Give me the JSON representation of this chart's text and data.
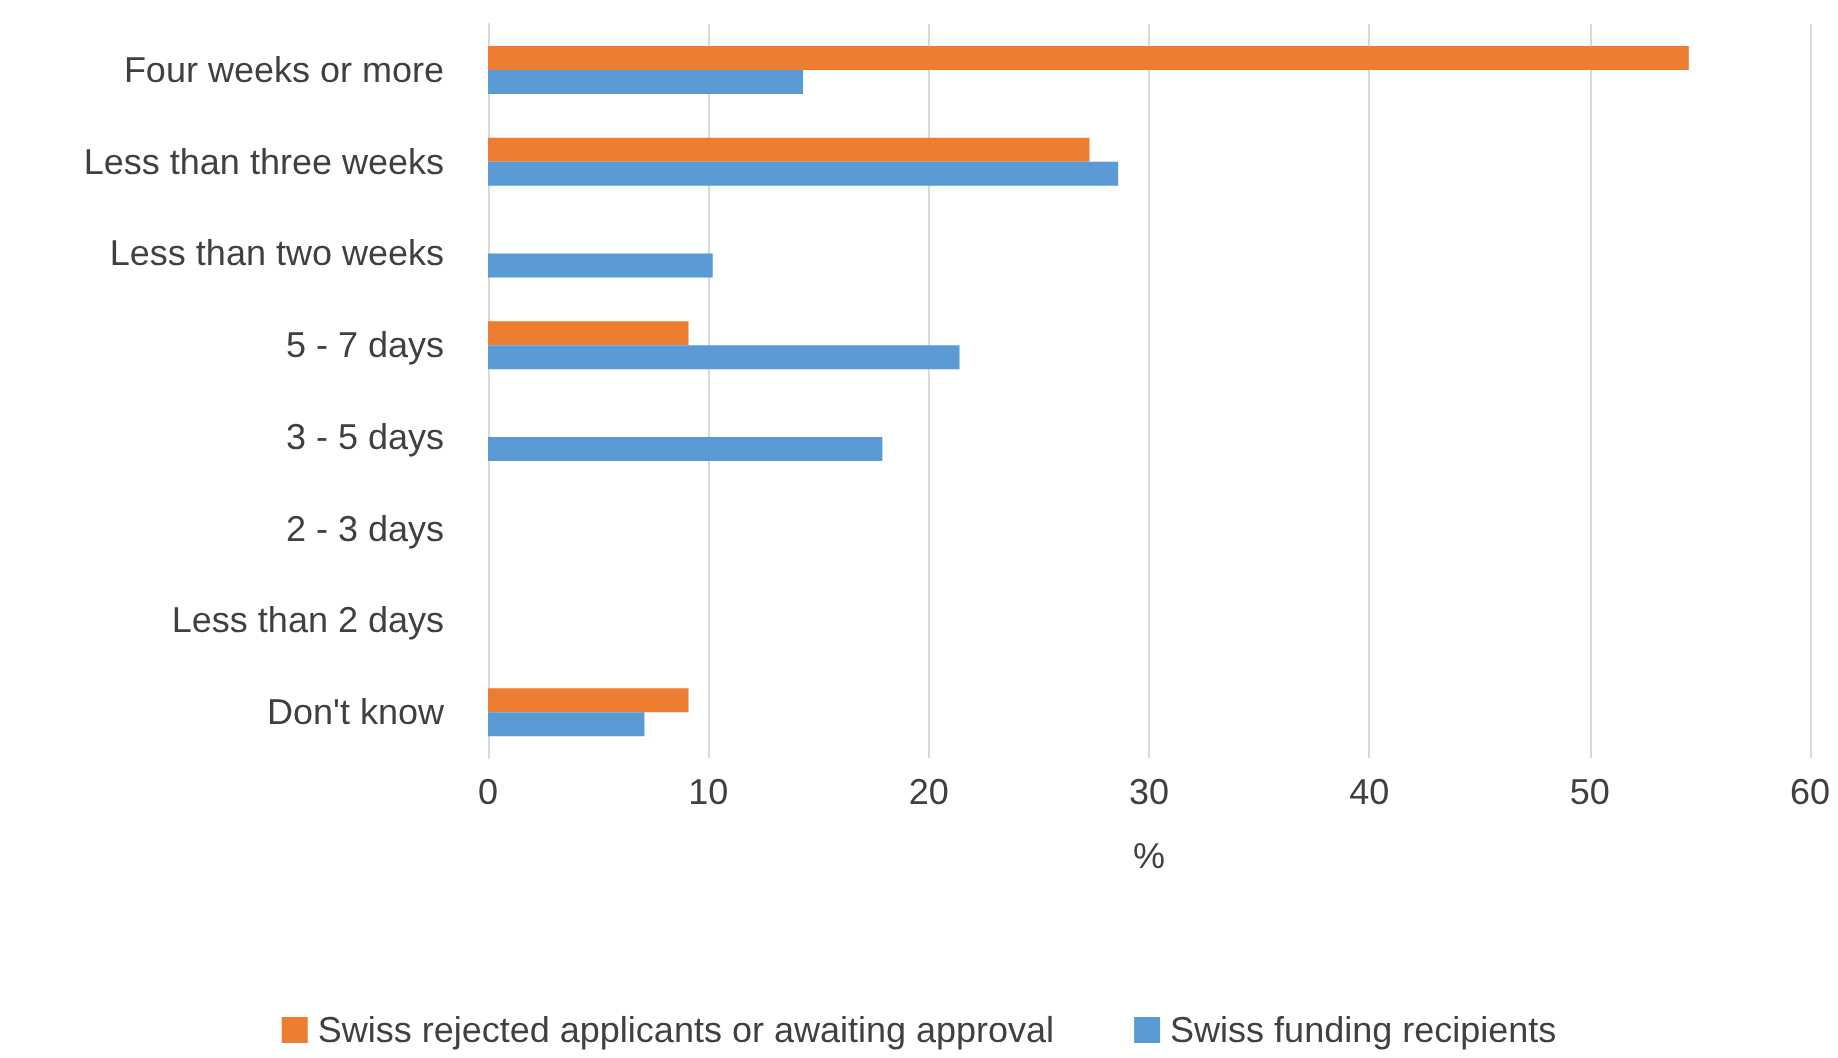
{
  "chart_data": {
    "type": "bar",
    "orientation": "horizontal",
    "xlabel": "%",
    "categories": [
      "Four weeks or more",
      "Less than three weeks",
      "Less than two weeks",
      "5 - 7 days",
      "3 - 5 days",
      "2 - 3 days",
      "Less than 2 days",
      "Don't know"
    ],
    "series": [
      {
        "name": "Swiss rejected applicants or awaiting approval",
        "color": "#ed7d31",
        "values": [
          54.5,
          27.3,
          0,
          9.1,
          0,
          0,
          0,
          9.1
        ]
      },
      {
        "name": "Swiss funding recipients",
        "color": "#5b9bd5",
        "values": [
          14.3,
          28.6,
          10.2,
          21.4,
          17.9,
          0,
          0,
          7.1
        ]
      }
    ],
    "xlim": [
      0,
      60
    ],
    "xticks": [
      0,
      10,
      20,
      30,
      40,
      50,
      60
    ],
    "grid": "x",
    "legend": "bottom"
  }
}
